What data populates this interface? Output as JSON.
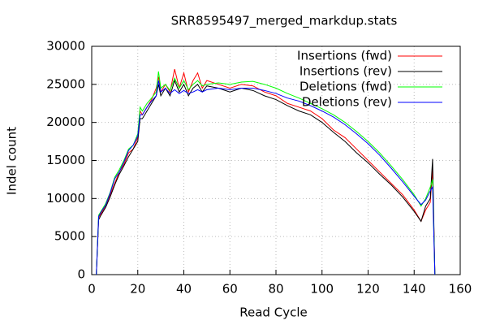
{
  "chart_data": {
    "type": "line",
    "title": "SRR8595497_merged_markdup.stats",
    "x_label": "Read Cycle",
    "y_label": "Indel count",
    "x": [
      2,
      3,
      4,
      6,
      8,
      10,
      12,
      14,
      16,
      18,
      20,
      21,
      22,
      24,
      26,
      28,
      29,
      30,
      32,
      34,
      36,
      38,
      40,
      42,
      44,
      46,
      48,
      50,
      55,
      60,
      65,
      70,
      75,
      80,
      85,
      90,
      95,
      100,
      105,
      110,
      115,
      120,
      125,
      130,
      135,
      140,
      143,
      145,
      147,
      148,
      149
    ],
    "series": [
      {
        "name": "Insertions (fwd)",
        "color": "#ff0000",
        "values": [
          0,
          7500,
          8000,
          9000,
          10500,
          12000,
          13500,
          14500,
          16000,
          16500,
          18000,
          21500,
          21000,
          22000,
          23000,
          24500,
          26000,
          24000,
          25000,
          24000,
          27000,
          24500,
          26500,
          24000,
          25500,
          26500,
          24500,
          25500,
          25000,
          24500,
          25000,
          24800,
          24000,
          23500,
          22500,
          22000,
          21500,
          20500,
          19000,
          18000,
          16500,
          15000,
          13500,
          12000,
          10500,
          8500,
          7000,
          8500,
          9500,
          14000,
          0
        ]
      },
      {
        "name": "Insertions (rev)",
        "color": "#000000",
        "values": [
          0,
          7200,
          7800,
          8800,
          10200,
          11800,
          13200,
          14300,
          15500,
          16500,
          17500,
          20500,
          20500,
          21500,
          22500,
          23500,
          25000,
          23500,
          24500,
          23500,
          25500,
          24000,
          25000,
          23500,
          24500,
          25000,
          24000,
          24800,
          24500,
          24000,
          24500,
          24200,
          23500,
          23000,
          22200,
          21500,
          21000,
          20000,
          18700,
          17500,
          16000,
          14700,
          13200,
          11800,
          10200,
          8300,
          7000,
          9000,
          10000,
          15200,
          0
        ]
      },
      {
        "name": "Deletions (fwd)",
        "color": "#00ff00",
        "values": [
          0,
          7800,
          8300,
          9300,
          10800,
          12800,
          13800,
          15000,
          16500,
          17000,
          18500,
          22000,
          21500,
          22500,
          23200,
          24000,
          26700,
          24500,
          25000,
          24200,
          25800,
          24500,
          25500,
          24300,
          25000,
          25500,
          24800,
          25000,
          25200,
          25000,
          25300,
          25400,
          25000,
          24500,
          23800,
          23200,
          22500,
          21800,
          21000,
          20000,
          18800,
          17500,
          16000,
          14300,
          12500,
          10500,
          9000,
          10000,
          11500,
          12500,
          0
        ]
      },
      {
        "name": "Deletions (rev)",
        "color": "#0000ff",
        "values": [
          0,
          7600,
          8200,
          9100,
          10700,
          12600,
          13500,
          14800,
          16300,
          17000,
          18200,
          21000,
          21000,
          22000,
          22800,
          23500,
          25500,
          24000,
          24500,
          23800,
          24300,
          23800,
          24200,
          23800,
          24000,
          24300,
          24000,
          24300,
          24500,
          24300,
          24500,
          24500,
          24200,
          23800,
          23200,
          22800,
          22200,
          21500,
          20700,
          19700,
          18500,
          17200,
          15700,
          14000,
          12200,
          10300,
          9200,
          9800,
          11000,
          11500,
          0
        ]
      }
    ],
    "xlim": [
      0,
      160
    ],
    "xticks": [
      0,
      20,
      40,
      60,
      80,
      100,
      120,
      140,
      160
    ],
    "ylim": [
      0,
      30000
    ],
    "yticks": [
      0,
      5000,
      10000,
      15000,
      20000,
      25000,
      30000
    ],
    "grid": true,
    "legend": "top-right"
  }
}
